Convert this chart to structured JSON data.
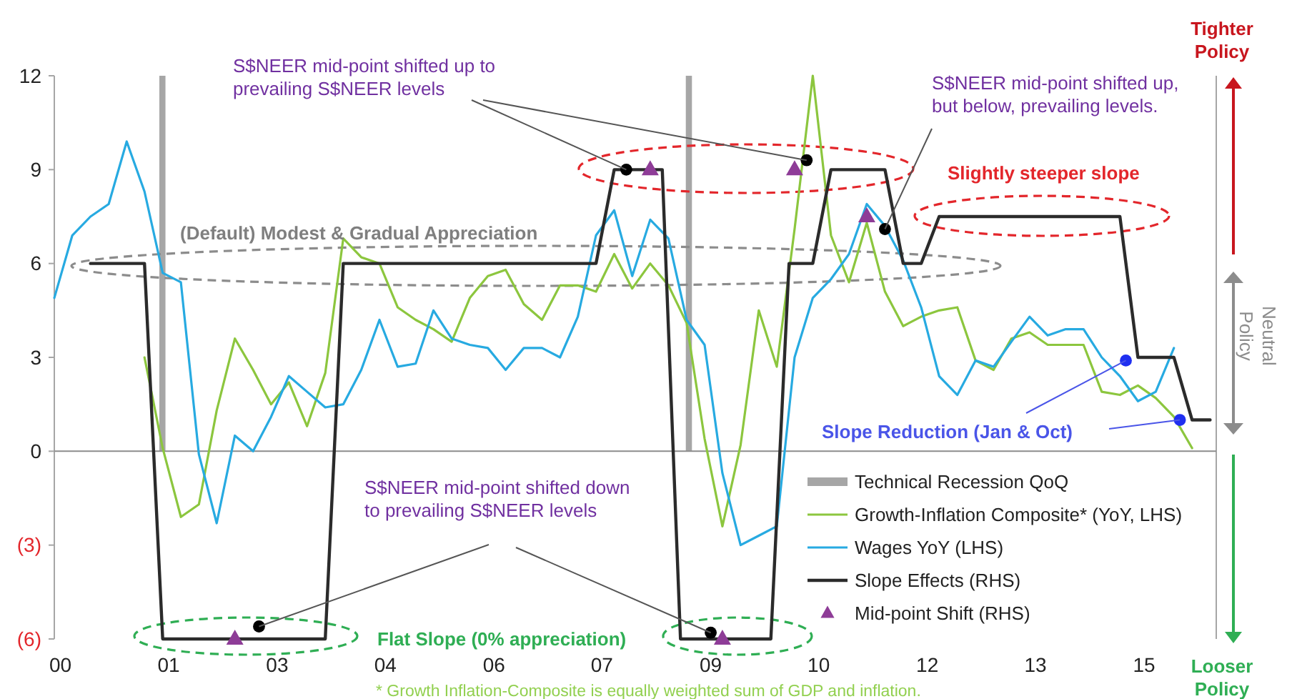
{
  "chart_data": {
    "type": "line",
    "xlim": [
      "1999-12-01",
      "2016-01-01"
    ],
    "xticks": [
      {
        "value": "2000-01",
        "label": "00"
      },
      {
        "value": "2001-07",
        "label": "01"
      },
      {
        "value": "2003-01",
        "label": "03"
      },
      {
        "value": "2004-07",
        "label": "04"
      },
      {
        "value": "2006-01",
        "label": "06"
      },
      {
        "value": "2007-07",
        "label": "07"
      },
      {
        "value": "2009-01",
        "label": "09"
      },
      {
        "value": "2010-07",
        "label": "10"
      },
      {
        "value": "2012-01",
        "label": "12"
      },
      {
        "value": "2013-07",
        "label": "13"
      },
      {
        "value": "2015-01",
        "label": "15"
      }
    ],
    "ylim": [
      -6,
      12
    ],
    "yticks": [
      {
        "value": -6,
        "label": "(6)"
      },
      {
        "value": -3,
        "label": "(3)"
      },
      0,
      3,
      6,
      9,
      12
    ],
    "legend": "bottom right",
    "bands": [
      {
        "axis": "x",
        "from": "2001-05-15",
        "to": "2001-06-15",
        "label": "Technical Recession QoQ",
        "color": "#a6a6a6"
      },
      {
        "axis": "x",
        "from": "2008-08-28",
        "to": "2008-09-28",
        "color": "#a6a6a6"
      }
    ],
    "series": [
      {
        "name": "Growth-Inflation Composite* (YoY, LHS)",
        "color": "#8cc63e",
        "x": [
          "2001-03",
          "2001-06",
          "2001-09",
          "2001-12",
          "2002-03",
          "2002-06",
          "2002-09",
          "2002-12",
          "2003-03",
          "2003-06",
          "2003-09",
          "2003-12",
          "2004-03",
          "2004-06",
          "2004-09",
          "2004-12",
          "2005-03",
          "2005-06",
          "2005-09",
          "2005-12",
          "2006-03",
          "2006-06",
          "2006-09",
          "2006-12",
          "2007-03",
          "2007-06",
          "2007-09",
          "2007-12",
          "2008-03",
          "2008-06",
          "2008-09",
          "2008-12",
          "2009-03",
          "2009-06",
          "2009-09",
          "2009-12",
          "2010-03",
          "2010-06",
          "2010-09",
          "2010-12",
          "2011-03",
          "2011-06",
          "2011-09",
          "2011-12",
          "2012-03",
          "2012-06",
          "2012-09",
          "2012-12",
          "2013-03",
          "2013-06",
          "2013-09",
          "2013-12",
          "2014-03",
          "2014-06",
          "2014-09",
          "2014-12",
          "2015-03",
          "2015-06",
          "2015-09"
        ],
        "values": [
          3.0,
          0.1,
          -2.1,
          -1.7,
          1.3,
          3.6,
          2.6,
          1.5,
          2.2,
          0.8,
          2.5,
          6.8,
          6.2,
          6.0,
          4.6,
          4.2,
          3.9,
          3.5,
          4.9,
          5.6,
          5.8,
          4.7,
          4.2,
          5.3,
          5.3,
          5.1,
          6.3,
          5.2,
          6.0,
          5.3,
          4.1,
          0.4,
          -2.4,
          0.2,
          4.5,
          2.7,
          7.1,
          12,
          6.9,
          5.4,
          7.3,
          5.1,
          4.0,
          4.3,
          4.5,
          4.6,
          2.9,
          2.6,
          3.6,
          3.8,
          3.4,
          3.4,
          3.4,
          1.9,
          1.8,
          2.1,
          1.7,
          1.1,
          0.1
        ]
      },
      {
        "name": "Wages YoY (LHS)",
        "color": "#27aae1",
        "x": [
          "1999-12",
          "2000-03",
          "2000-06",
          "2000-09",
          "2000-12",
          "2001-03",
          "2001-06",
          "2001-09",
          "2001-12",
          "2002-03",
          "2002-06",
          "2002-09",
          "2002-12",
          "2003-03",
          "2003-06",
          "2003-09",
          "2003-12",
          "2004-03",
          "2004-06",
          "2004-09",
          "2004-12",
          "2005-03",
          "2005-06",
          "2005-09",
          "2005-12",
          "2006-03",
          "2006-06",
          "2006-09",
          "2006-12",
          "2007-03",
          "2007-06",
          "2007-09",
          "2007-12",
          "2008-03",
          "2008-06",
          "2008-09",
          "2008-12",
          "2009-03",
          "2009-06",
          "2009-09",
          "2009-12",
          "2010-03",
          "2010-06",
          "2010-09",
          "2010-12",
          "2011-03",
          "2011-06",
          "2011-09",
          "2011-12",
          "2012-03",
          "2012-06",
          "2012-09",
          "2012-12",
          "2013-03",
          "2013-06",
          "2013-09",
          "2013-12",
          "2014-03",
          "2014-06",
          "2014-09",
          "2014-12",
          "2015-03",
          "2015-06"
        ],
        "values": [
          4.9,
          6.9,
          7.5,
          7.9,
          9.9,
          8.3,
          5.7,
          5.4,
          -0.1,
          -2.3,
          0.5,
          0.0,
          1.1,
          2.4,
          1.9,
          1.4,
          1.5,
          2.6,
          4.2,
          2.7,
          2.8,
          4.5,
          3.6,
          3.4,
          3.3,
          2.6,
          3.3,
          3.3,
          3.0,
          4.3,
          6.9,
          7.7,
          5.6,
          7.4,
          6.8,
          4.2,
          3.4,
          -0.7,
          -3.0,
          -2.7,
          -2.4,
          3.0,
          4.9,
          5.5,
          6.3,
          7.9,
          7.2,
          6.1,
          4.6,
          2.4,
          1.8,
          2.9,
          2.7,
          3.5,
          4.3,
          3.7,
          3.9,
          3.9,
          3.0,
          2.4,
          1.6,
          1.9,
          3.3
        ]
      },
      {
        "name": "Slope Effects (RHS)",
        "color": "#2b2b2b",
        "x": [
          "2000-06",
          "2001-03",
          "2001-06",
          "2003-09",
          "2003-12",
          "2007-06",
          "2007-09",
          "2008-05",
          "2008-08",
          "2009-11",
          "2010-02",
          "2010-06",
          "2010-09",
          "2011-06",
          "2011-09",
          "2011-12",
          "2012-03",
          "2014-09",
          "2014-12",
          "2015-06",
          "2015-09",
          "2015-12"
        ],
        "values": [
          6,
          6,
          -6,
          -6,
          6,
          6,
          9,
          9,
          -6,
          -6,
          6,
          6,
          9,
          9,
          6,
          6,
          7.5,
          7.5,
          3,
          3,
          1,
          1
        ]
      },
      {
        "name": "Mid-point Shift (RHS)",
        "type": "scatter",
        "marker": "triangle",
        "color": "#8e3c97",
        "x": [
          "2002-06",
          "2008-03",
          "2009-03",
          "2010-03",
          "2011-03"
        ],
        "values": [
          -6,
          9,
          -6,
          9,
          7.5
        ]
      },
      {
        "type": "scatter",
        "marker": "circle",
        "color": "#000000",
        "x": [
          "2002-10",
          "2007-11",
          "2010-05",
          "2011-06",
          "2009-01"
        ],
        "values": [
          -5.6,
          9.0,
          9.3,
          7.1,
          -5.8
        ]
      },
      {
        "type": "scatter",
        "marker": "circle",
        "color": "#1f2ff0",
        "x": [
          "2014-10",
          "2015-07"
        ],
        "values": [
          2.9,
          1.0
        ]
      }
    ],
    "annotations": [
      {
        "text": "S$NEER mid-point shifted up to prevailing S$NEER levels",
        "x": "2007-11",
        "y": 9.0
      },
      {
        "text": "S$NEER mid-point shifted up, but below, prevailing levels.",
        "x": "2011-06",
        "y": 7.1
      },
      "Slightly steeper slope",
      "(Default) Modest & Gradual Appreciation",
      {
        "text": "S$NEER mid-point shifted down to prevailing S$NEER levels",
        "x": "2002-10",
        "y": -5.6
      },
      "Flat Slope (0% appreciation)",
      {
        "text": "Slope Reduction (Jan & Oct)",
        "x": "2014-10",
        "y": 2.9
      },
      "Tighter Policy",
      "Neutral Policy",
      "Looser Policy",
      "* Growth Inflation-Composite is equally weighted sum of GDP and inflation."
    ]
  }
}
